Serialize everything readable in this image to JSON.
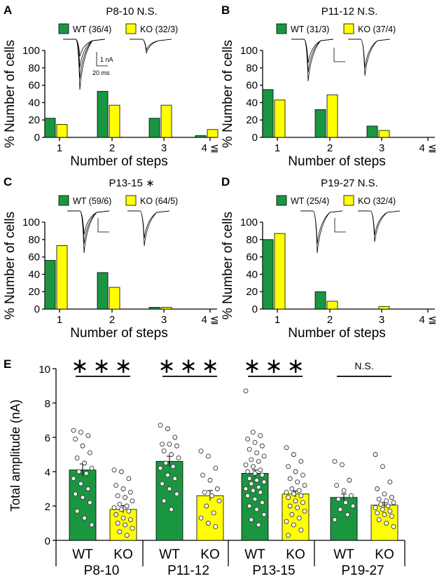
{
  "colors": {
    "wt": "#1a9641",
    "ko": "#ffff00"
  },
  "chart_data": [
    {
      "type": "bar",
      "letter": "A",
      "title": "P8-10 N.S.",
      "legend": [
        "WT (36/4)",
        "KO (32/3)"
      ],
      "categories": [
        "1",
        "2",
        "3",
        "4 ≦"
      ],
      "series": [
        {
          "name": "WT",
          "values": [
            22,
            53,
            22,
            2
          ]
        },
        {
          "name": "KO",
          "values": [
            15,
            37,
            37,
            9
          ]
        }
      ],
      "xlabel": "Number of steps",
      "ylabel": "% Number of  cells",
      "ylim": [
        0,
        100
      ],
      "yticks": [
        "0",
        "20",
        "40",
        "60",
        "80",
        "100"
      ],
      "scalebar": {
        "y": "1 nA",
        "x": "20 ms"
      }
    },
    {
      "type": "bar",
      "letter": "B",
      "title": "P11-12 N.S.",
      "legend": [
        "WT (31/3)",
        "KO (37/4)"
      ],
      "categories": [
        "1",
        "2",
        "3",
        "4 ≦"
      ],
      "series": [
        {
          "name": "WT",
          "values": [
            55,
            32,
            13,
            0
          ]
        },
        {
          "name": "KO",
          "values": [
            43,
            49,
            8,
            0
          ]
        }
      ],
      "xlabel": "Number of steps",
      "ylabel": "% Number of  cells",
      "ylim": [
        0,
        100
      ],
      "yticks": [
        "0",
        "20",
        "40",
        "60",
        "80",
        "100"
      ]
    },
    {
      "type": "bar",
      "letter": "C",
      "title": "P13-15 ∗",
      "legend": [
        "WT (59/6)",
        "KO (64/5)"
      ],
      "categories": [
        "1",
        "2",
        "3",
        "4 ≦"
      ],
      "series": [
        {
          "name": "WT",
          "values": [
            56,
            42,
            2,
            0
          ]
        },
        {
          "name": "KO",
          "values": [
            73,
            25,
            2,
            0
          ]
        }
      ],
      "xlabel": "Number of steps",
      "ylabel": "% Number of  cells",
      "ylim": [
        0,
        100
      ],
      "yticks": [
        "0",
        "20",
        "40",
        "60",
        "80",
        "100"
      ]
    },
    {
      "type": "bar",
      "letter": "D",
      "title": "P19-27 N.S.",
      "legend": [
        "WT (25/4)",
        "KO (32/4)"
      ],
      "categories": [
        "1",
        "2",
        "3",
        "4 ≦"
      ],
      "series": [
        {
          "name": "WT",
          "values": [
            80,
            20,
            0,
            0
          ]
        },
        {
          "name": "KO",
          "values": [
            87,
            9,
            3,
            0
          ]
        }
      ],
      "xlabel": "Number of steps",
      "ylabel": "% Number of  cells",
      "ylim": [
        0,
        100
      ],
      "yticks": [
        "0",
        "20",
        "40",
        "60",
        "80",
        "100"
      ]
    },
    {
      "type": "bar",
      "letter": "E",
      "ylabel": "Total amplitude (nA)",
      "ylim": [
        0,
        10
      ],
      "yticks": [
        "0",
        "2",
        "4",
        "6",
        "8",
        "10"
      ],
      "groups": [
        {
          "name": "P8-10",
          "significance": "∗∗∗",
          "bars": [
            {
              "label": "WT",
              "mean": 4.1,
              "sem": 0.35,
              "points": [
                6.4,
                6.3,
                6.1,
                5.9,
                5.5,
                5.1,
                4.8,
                4.5,
                4.2,
                4.0,
                3.9,
                3.6,
                3.3,
                3.0,
                2.7,
                2.5,
                2.2,
                1.7,
                1.3,
                0.9
              ]
            },
            {
              "label": "KO",
              "mean": 1.8,
              "sem": 0.22,
              "points": [
                4.1,
                4.0,
                3.6,
                3.2,
                3.0,
                2.8,
                2.6,
                2.5,
                2.3,
                2.1,
                2.0,
                1.9,
                1.8,
                1.7,
                1.5,
                1.3,
                1.2,
                1.0,
                0.9,
                0.7,
                0.5,
                0.3
              ]
            }
          ]
        },
        {
          "name": "P11-12",
          "significance": "∗∗∗",
          "bars": [
            {
              "label": "WT",
              "mean": 4.6,
              "sem": 0.3,
              "points": [
                6.7,
                6.5,
                6.0,
                5.6,
                5.6,
                5.5,
                5.2,
                5.0,
                4.8,
                4.5,
                4.3,
                4.2,
                3.8,
                3.6,
                3.3,
                3.0,
                2.7,
                2.3,
                1.8
              ]
            },
            {
              "label": "KO",
              "mean": 2.6,
              "sem": 0.3,
              "points": [
                5.2,
                4.9,
                4.2,
                3.8,
                3.5,
                3.0,
                2.8,
                2.6,
                2.3,
                2.0,
                1.6,
                1.3,
                1.0,
                0.8
              ]
            }
          ]
        },
        {
          "name": "P13-15",
          "significance": "∗∗∗",
          "bars": [
            {
              "label": "WT",
              "mean": 3.9,
              "sem": 0.2,
              "points": [
                8.7,
                6.3,
                6.1,
                5.9,
                5.7,
                5.5,
                5.3,
                5.1,
                4.9,
                4.7,
                4.6,
                4.4,
                4.3,
                4.1,
                4.0,
                3.9,
                3.8,
                3.6,
                3.5,
                3.4,
                3.3,
                3.1,
                3.0,
                2.9,
                2.8,
                2.6,
                2.4,
                2.2,
                2.0,
                1.8,
                1.5,
                1.2,
                0.9
              ]
            },
            {
              "label": "KO",
              "mean": 2.7,
              "sem": 0.18,
              "points": [
                5.4,
                5.0,
                4.6,
                4.3,
                4.0,
                3.8,
                3.6,
                3.4,
                3.2,
                3.0,
                2.9,
                2.8,
                2.7,
                2.6,
                2.5,
                2.3,
                2.2,
                2.0,
                1.9,
                1.7,
                1.5,
                1.3,
                1.1,
                0.9,
                0.6,
                0.3
              ]
            }
          ]
        },
        {
          "name": "P19-27",
          "significance": "N.S.",
          "bars": [
            {
              "label": "WT",
              "mean": 2.5,
              "sem": 0.2,
              "points": [
                4.6,
                4.4,
                3.5,
                3.2,
                2.9,
                2.6,
                2.4,
                2.2,
                2.0,
                1.8,
                1.5,
                1.2
              ]
            },
            {
              "label": "KO",
              "mean": 2.05,
              "sem": 0.15,
              "points": [
                5.0,
                4.3,
                3.4,
                3.0,
                2.7,
                2.5,
                2.4,
                2.3,
                2.2,
                2.1,
                2.0,
                1.9,
                1.8,
                1.7,
                1.6,
                1.5,
                1.4,
                1.2,
                1.0,
                0.8
              ]
            }
          ]
        }
      ]
    }
  ]
}
